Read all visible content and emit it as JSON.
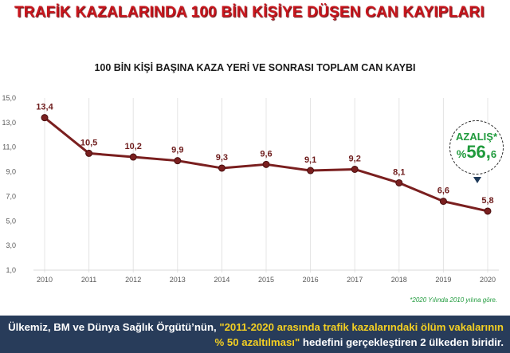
{
  "header": {
    "title": "TRAFİK KAZALARINDA 100 BİN KİŞİYE DÜŞEN CAN KAYIPLARI"
  },
  "badge": {
    "label": "AZALIŞ*",
    "percent_sign": "%",
    "value_int": "56,",
    "value_dec": "6"
  },
  "footnote": "*2020 Yılında 2010 yılına göre.",
  "banner": {
    "part1": "Ülkemiz, BM ve Dünya Sağlık Örgütü’nün, ",
    "highlight": "\"2011-2020 arasında trafik kazalarındaki ölüm vakalarının % 50 azaltılması\"",
    "part2": " hedefini gerçekleştiren 2 ülkeden biridir."
  },
  "colors": {
    "title": "#c8161d",
    "line": "#7a1f1f",
    "accent_green": "#1f9a3c",
    "banner_bg": "#283c5a",
    "highlight": "#f3cf22"
  },
  "chart_data": {
    "type": "line",
    "title": "100 BİN KİŞİ BAŞINA KAZA YERİ VE SONRASI TOPLAM CAN KAYBI",
    "x": [
      "2010",
      "2011",
      "2012",
      "2013",
      "2014",
      "2015",
      "2016",
      "2017",
      "2018",
      "2019",
      "2020"
    ],
    "values": [
      13.4,
      10.5,
      10.2,
      9.9,
      9.3,
      9.6,
      9.1,
      9.2,
      8.1,
      6.6,
      5.8
    ],
    "value_labels": [
      "13,4",
      "10,5",
      "10,2",
      "9,9",
      "9,3",
      "9,6",
      "9,1",
      "9,2",
      "8,1",
      "6,6",
      "5,8"
    ],
    "ylim": [
      1.0,
      15.0
    ],
    "yticks": [
      1.0,
      3.0,
      5.0,
      7.0,
      9.0,
      11.0,
      13.0,
      15.0
    ],
    "ytick_labels": [
      "1,0",
      "3,0",
      "5,0",
      "7,0",
      "9,0",
      "11,0",
      "13,0",
      "15,0"
    ],
    "grid": "vertical",
    "xlabel": "",
    "ylabel": ""
  }
}
